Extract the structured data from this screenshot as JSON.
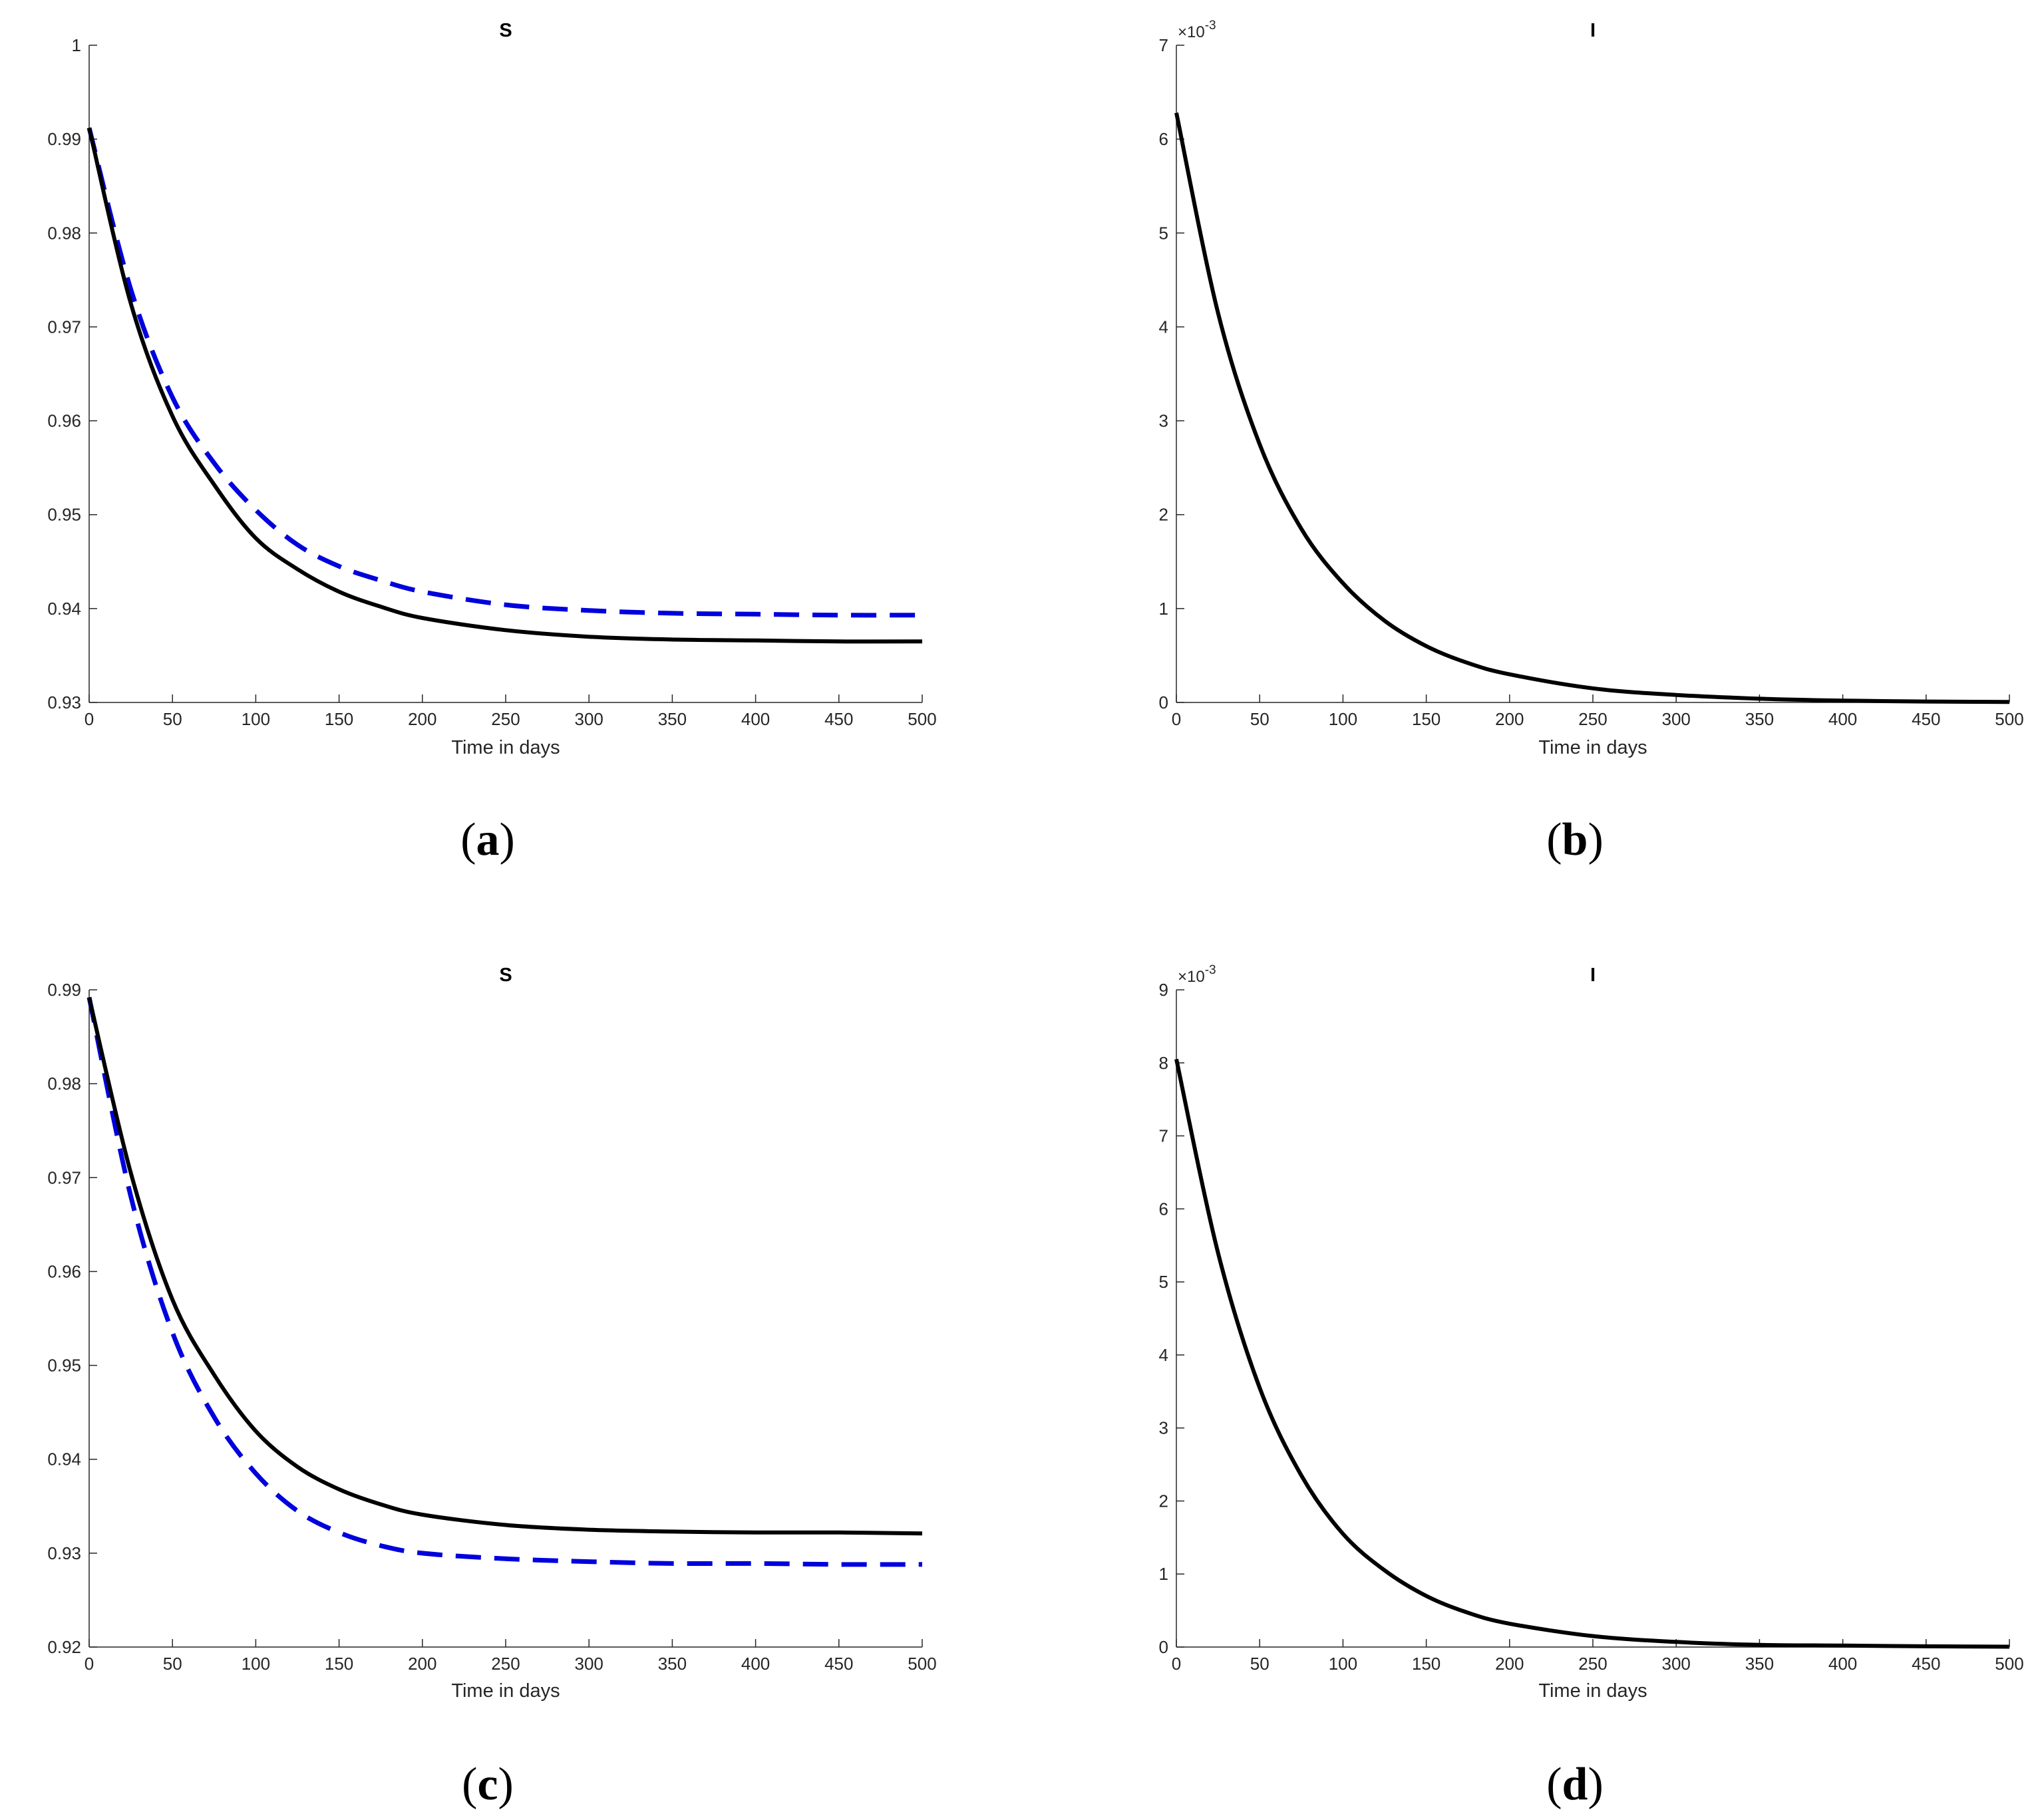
{
  "chart_data": [
    {
      "id": "a",
      "type": "line",
      "title": "S",
      "caption_letter": "a",
      "xlabel": "Time in days",
      "ylabel": "",
      "xlim": [
        0,
        500
      ],
      "ylim": [
        0.93,
        1
      ],
      "xticks": [
        "0",
        "50",
        "100",
        "150",
        "200",
        "250",
        "300",
        "350",
        "400",
        "450",
        "500"
      ],
      "yticks": [
        "0.93",
        "0.94",
        "0.95",
        "0.96",
        "0.97",
        "0.98",
        "0.99",
        "1"
      ],
      "grid": false,
      "series": [
        {
          "style": "solid",
          "color": "#000000",
          "x": [
            0,
            25,
            50,
            75,
            100,
            125,
            150,
            175,
            200,
            250,
            300,
            350,
            400,
            450,
            500
          ],
          "y": [
            0.9912,
            0.9725,
            0.9605,
            0.9532,
            0.9475,
            0.9442,
            0.9418,
            0.9402,
            0.939,
            0.9377,
            0.937,
            0.9367,
            0.9366,
            0.9365,
            0.9365
          ]
        },
        {
          "style": "dashed",
          "color": "#0000dd",
          "x": [
            0,
            25,
            50,
            75,
            100,
            125,
            150,
            175,
            200,
            250,
            300,
            350,
            400,
            450,
            500
          ],
          "y": [
            0.9912,
            0.974,
            0.9625,
            0.9555,
            0.9505,
            0.9468,
            0.9445,
            0.943,
            0.9418,
            0.9404,
            0.9398,
            0.9395,
            0.9394,
            0.9393,
            0.9393
          ]
        }
      ]
    },
    {
      "id": "b",
      "type": "line",
      "title": "I",
      "caption_letter": "b",
      "xlabel": "Time in days",
      "ylabel": "",
      "xlim": [
        0,
        500
      ],
      "ylim": [
        0,
        7
      ],
      "y_exponent_base": "×10",
      "y_exponent_power": "-3",
      "xticks": [
        "0",
        "50",
        "100",
        "150",
        "200",
        "250",
        "300",
        "350",
        "400",
        "450",
        "500"
      ],
      "yticks": [
        "0",
        "1",
        "2",
        "3",
        "4",
        "5",
        "6",
        "7"
      ],
      "grid": false,
      "series": [
        {
          "style": "solid",
          "color": "#000000",
          "x": [
            0,
            25,
            50,
            75,
            100,
            125,
            150,
            175,
            200,
            250,
            300,
            350,
            400,
            450,
            500
          ],
          "y": [
            6.28,
            4.15,
            2.75,
            1.85,
            1.27,
            0.87,
            0.6,
            0.42,
            0.3,
            0.15,
            0.08,
            0.04,
            0.02,
            0.01,
            0.005
          ]
        }
      ]
    },
    {
      "id": "c",
      "type": "line",
      "title": "S",
      "caption_letter": "c",
      "xlabel": "Time in days",
      "ylabel": "",
      "xlim": [
        0,
        500
      ],
      "ylim": [
        0.92,
        0.99
      ],
      "xticks": [
        "0",
        "50",
        "100",
        "150",
        "200",
        "250",
        "300",
        "350",
        "400",
        "450",
        "500"
      ],
      "yticks": [
        "0.92",
        "0.93",
        "0.94",
        "0.95",
        "0.96",
        "0.97",
        "0.98",
        "0.99"
      ],
      "grid": false,
      "series": [
        {
          "style": "solid",
          "color": "#000000",
          "x": [
            0,
            25,
            50,
            75,
            100,
            125,
            150,
            175,
            200,
            250,
            300,
            350,
            400,
            450,
            500
          ],
          "y": [
            0.9892,
            0.9705,
            0.957,
            0.949,
            0.943,
            0.9392,
            0.9368,
            0.9352,
            0.9341,
            0.933,
            0.9325,
            0.9323,
            0.9322,
            0.9322,
            0.9321
          ]
        },
        {
          "style": "dashed",
          "color": "#0000dd",
          "x": [
            0,
            25,
            50,
            75,
            100,
            125,
            150,
            175,
            200,
            250,
            300,
            350,
            400,
            450,
            500
          ],
          "y": [
            0.9892,
            0.968,
            0.9535,
            0.9445,
            0.9385,
            0.9345,
            0.9322,
            0.9308,
            0.93,
            0.9294,
            0.9291,
            0.9289,
            0.9289,
            0.9288,
            0.9288
          ]
        }
      ]
    },
    {
      "id": "d",
      "type": "line",
      "title": "I",
      "caption_letter": "d",
      "xlabel": "Time in days",
      "ylabel": "",
      "xlim": [
        0,
        500
      ],
      "ylim": [
        0,
        9
      ],
      "y_exponent_base": "×10",
      "y_exponent_power": "-3",
      "xticks": [
        "0",
        "50",
        "100",
        "150",
        "200",
        "250",
        "300",
        "350",
        "400",
        "450",
        "500"
      ],
      "yticks": [
        "0",
        "1",
        "2",
        "3",
        "4",
        "5",
        "6",
        "7",
        "8",
        "9"
      ],
      "grid": false,
      "series": [
        {
          "style": "solid",
          "color": "#000000",
          "x": [
            0,
            25,
            50,
            75,
            100,
            125,
            150,
            175,
            200,
            250,
            300,
            350,
            400,
            450,
            500
          ],
          "y": [
            8.05,
            5.4,
            3.55,
            2.35,
            1.55,
            1.05,
            0.7,
            0.47,
            0.32,
            0.15,
            0.07,
            0.03,
            0.02,
            0.01,
            0.005
          ]
        }
      ]
    }
  ]
}
